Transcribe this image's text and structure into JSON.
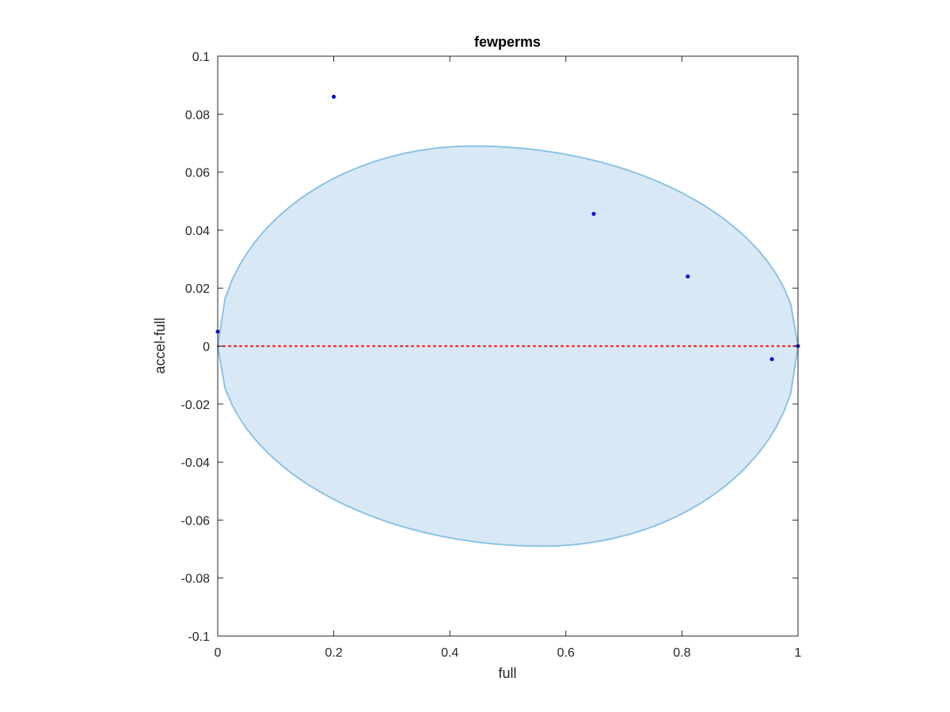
{
  "chart_data": {
    "type": "scatter",
    "title": "fewperms",
    "xlabel": "full",
    "ylabel": "accel-full",
    "xlim": [
      0,
      1
    ],
    "ylim": [
      -0.1,
      0.1
    ],
    "xticks": [
      0,
      0.2,
      0.4,
      0.6,
      0.8,
      1
    ],
    "xtick_labels": [
      "0",
      "0.2",
      "0.4",
      "0.6",
      "0.8",
      "1"
    ],
    "yticks": [
      0.1,
      0.08,
      0.06,
      0.04,
      0.02,
      0,
      -0.02,
      -0.04,
      -0.06,
      -0.08,
      -0.1
    ],
    "ytick_labels": [
      "0.1",
      "0.08",
      "0.06",
      "0.04",
      "0.02",
      "0",
      "-0.02",
      "-0.04",
      "-0.06",
      "-0.08",
      "-0.1"
    ],
    "grid": false,
    "points": {
      "x": [
        0,
        0.2,
        0.648,
        0.81,
        0.955,
        1
      ],
      "y": [
        0.005,
        0.086,
        0.0456,
        0.024,
        -0.0045,
        0
      ]
    },
    "reference_line": {
      "y": 0,
      "style": "dotted"
    },
    "region": {
      "type": "ellipse",
      "x_range": [
        0,
        1
      ],
      "y_range": [
        -0.069,
        0.069
      ],
      "peak_x_top": 0.44,
      "peak_x_bottom": 0.56
    },
    "colors": {
      "points": "#0000cc",
      "reference_line": "#ff0000",
      "region_fill": "#d9e8f5",
      "region_edge": "#8cc2e4",
      "axes": "#262626"
    }
  }
}
